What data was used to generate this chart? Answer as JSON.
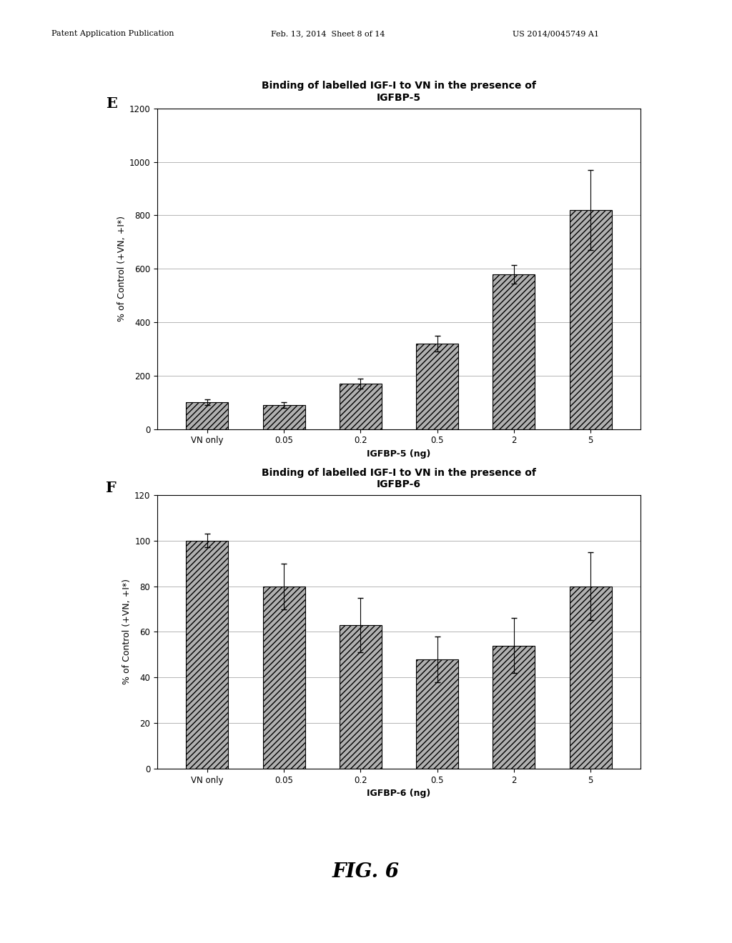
{
  "page_header_left": "Patent Application Publication",
  "page_header_mid": "Feb. 13, 2014  Sheet 8 of 14",
  "page_header_right": "US 2014/0045749 A1",
  "fig_label": "FIG. 6",
  "panel_E": {
    "label": "E",
    "title_line1": "Binding of labelled IGF-I to VN in the presence of",
    "title_line2": "IGFBP-5",
    "xlabel": "IGFBP-5 (ng)",
    "ylabel": "% of Control (+VN, +I*)",
    "categories": [
      "VN only",
      "0.05",
      "0.2",
      "0.5",
      "2",
      "5"
    ],
    "values": [
      100,
      90,
      170,
      320,
      580,
      820
    ],
    "errors": [
      10,
      10,
      18,
      30,
      35,
      150
    ],
    "ylim": [
      0,
      1200
    ],
    "yticks": [
      0,
      200,
      400,
      600,
      800,
      1000,
      1200
    ],
    "bar_width": 0.55
  },
  "panel_F": {
    "label": "F",
    "title_line1": "Binding of labelled IGF-I to VN in the presence of",
    "title_line2": "IGFBP-6",
    "xlabel": "IGFBP-6 (ng)",
    "ylabel": "% of Control (+VN, +I*)",
    "categories": [
      "VN only",
      "0.05",
      "0.2",
      "0.5",
      "2",
      "5"
    ],
    "values": [
      100,
      80,
      63,
      48,
      54,
      80
    ],
    "errors": [
      3,
      10,
      12,
      10,
      12,
      15
    ],
    "ylim": [
      0,
      120
    ],
    "yticks": [
      0,
      20,
      40,
      60,
      80,
      100,
      120
    ],
    "bar_width": 0.55
  },
  "bg_color": "#ffffff",
  "plot_bg_color": "#ffffff",
  "font_color": "#000000",
  "title_fontsize": 10,
  "label_fontsize": 9,
  "tick_fontsize": 8.5,
  "panel_label_fontsize": 15,
  "header_fontsize": 8
}
